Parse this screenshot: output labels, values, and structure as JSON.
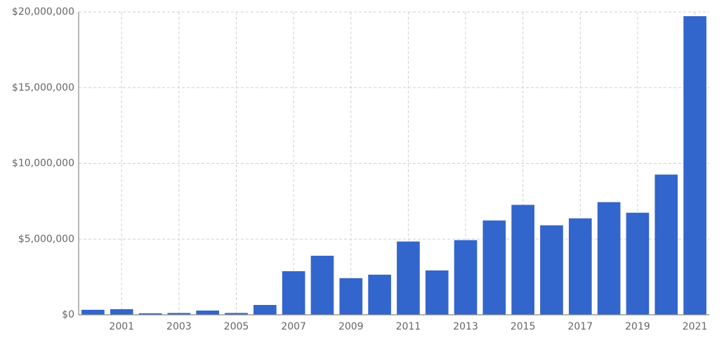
{
  "chart_data": {
    "type": "bar",
    "x": [
      2000,
      2001,
      2002,
      2003,
      2004,
      2005,
      2006,
      2007,
      2008,
      2009,
      2010,
      2011,
      2012,
      2013,
      2014,
      2015,
      2016,
      2017,
      2018,
      2019,
      2020,
      2021
    ],
    "values": [
      330000,
      370000,
      100000,
      120000,
      280000,
      120000,
      650000,
      2880000,
      3900000,
      2420000,
      2650000,
      4840000,
      2930000,
      4930000,
      6230000,
      7260000,
      5910000,
      6370000,
      7440000,
      6740000,
      9260000,
      19720000
    ],
    "color": "#3366cc",
    "xlim": [
      1999.5,
      2021.5
    ],
    "xticks": [
      2001,
      2003,
      2005,
      2007,
      2009,
      2011,
      2013,
      2015,
      2017,
      2019,
      2021
    ],
    "ylim": [
      0,
      20000000
    ],
    "yticks": [
      {
        "value": 0,
        "label": "$0"
      },
      {
        "value": 5000000,
        "label": "$5,000,000"
      },
      {
        "value": 10000000,
        "label": "$10,000,000"
      },
      {
        "value": 15000000,
        "label": "$15,000,000"
      },
      {
        "value": 20000000,
        "label": "$20,000,000"
      }
    ],
    "grid": true
  }
}
